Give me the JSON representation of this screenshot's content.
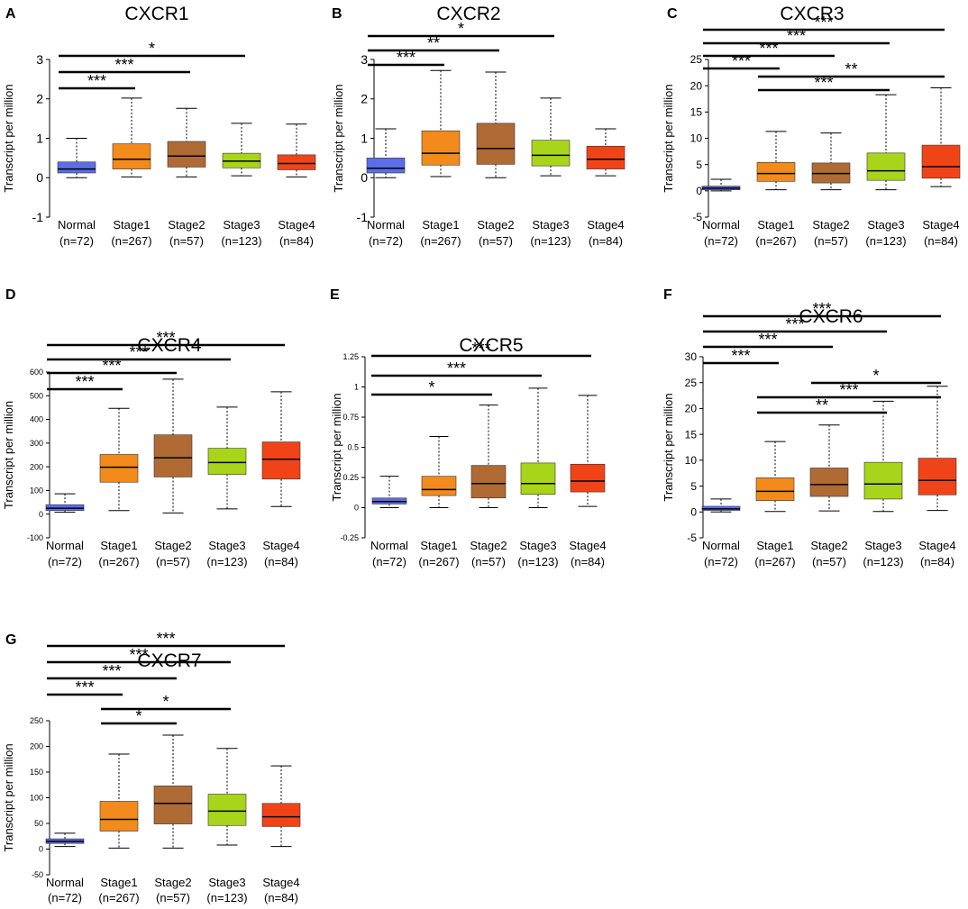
{
  "figure": {
    "y_label": "Transcript per million",
    "groups": [
      "Normal",
      "Stage1",
      "Stage2",
      "Stage3",
      "Stage4"
    ],
    "counts": [
      "(n=72)",
      "(n=267)",
      "(n=57)",
      "(n=123)",
      "(n=84)"
    ],
    "box_colors": [
      "#5b6ee8",
      "#f28a1c",
      "#b06a34",
      "#a8d41a",
      "#f04418"
    ]
  },
  "chart_data": [
    {
      "panel": "A",
      "title": "CXCR1",
      "type": "boxplot",
      "xlabel": "",
      "ylabel": "Transcript per million",
      "ylim": [
        -1,
        3
      ],
      "yticks": [
        -1,
        0,
        1,
        2,
        3
      ],
      "categories": [
        "Normal",
        "Stage1",
        "Stage2",
        "Stage3",
        "Stage4"
      ],
      "boxes": [
        {
          "min": 0.0,
          "q1": 0.12,
          "median": 0.22,
          "q3": 0.4,
          "max": 1.0
        },
        {
          "min": 0.02,
          "q1": 0.22,
          "median": 0.47,
          "q3": 0.86,
          "max": 2.02
        },
        {
          "min": 0.02,
          "q1": 0.27,
          "median": 0.55,
          "q3": 0.92,
          "max": 1.76
        },
        {
          "min": 0.05,
          "q1": 0.25,
          "median": 0.42,
          "q3": 0.62,
          "max": 1.38
        },
        {
          "min": 0.02,
          "q1": 0.2,
          "median": 0.36,
          "q3": 0.58,
          "max": 1.36
        }
      ],
      "significance": [
        {
          "from": "Normal",
          "to": "Stage1",
          "label": "***"
        },
        {
          "from": "Normal",
          "to": "Stage2",
          "label": "***"
        },
        {
          "from": "Normal",
          "to": "Stage3",
          "label": "*"
        }
      ]
    },
    {
      "panel": "B",
      "title": "CXCR2",
      "type": "boxplot",
      "xlabel": "",
      "ylabel": "Transcript per million",
      "ylim": [
        -1,
        3
      ],
      "yticks": [
        -1,
        0,
        1,
        2,
        3
      ],
      "categories": [
        "Normal",
        "Stage1",
        "Stage2",
        "Stage3",
        "Stage4"
      ],
      "boxes": [
        {
          "min": 0.0,
          "q1": 0.12,
          "median": 0.24,
          "q3": 0.5,
          "max": 1.24
        },
        {
          "min": 0.03,
          "q1": 0.32,
          "median": 0.62,
          "q3": 1.19,
          "max": 2.72
        },
        {
          "min": 0.0,
          "q1": 0.34,
          "median": 0.74,
          "q3": 1.38,
          "max": 2.68
        },
        {
          "min": 0.05,
          "q1": 0.3,
          "median": 0.57,
          "q3": 0.95,
          "max": 2.02
        },
        {
          "min": 0.05,
          "q1": 0.22,
          "median": 0.47,
          "q3": 0.8,
          "max": 1.24
        }
      ],
      "significance": [
        {
          "from": "Normal",
          "to": "Stage1",
          "label": "***"
        },
        {
          "from": "Normal",
          "to": "Stage2",
          "label": "**"
        },
        {
          "from": "Normal",
          "to": "Stage3",
          "label": "*"
        }
      ]
    },
    {
      "panel": "C",
      "title": "CXCR3",
      "type": "boxplot",
      "xlabel": "",
      "ylabel": "Transcript per million",
      "ylim": [
        -5,
        25
      ],
      "yticks": [
        -5,
        0,
        5,
        10,
        15,
        20,
        25
      ],
      "categories": [
        "Normal",
        "Stage1",
        "Stage2",
        "Stage3",
        "Stage4"
      ],
      "boxes": [
        {
          "min": 0.0,
          "q1": 0.2,
          "median": 0.5,
          "q3": 0.9,
          "max": 2.2
        },
        {
          "min": 0.2,
          "q1": 1.8,
          "median": 3.3,
          "q3": 5.4,
          "max": 11.3
        },
        {
          "min": 0.2,
          "q1": 1.5,
          "median": 3.3,
          "q3": 5.3,
          "max": 11.0
        },
        {
          "min": 0.2,
          "q1": 2.0,
          "median": 3.8,
          "q3": 7.2,
          "max": 18.3
        },
        {
          "min": 0.8,
          "q1": 2.4,
          "median": 4.6,
          "q3": 8.7,
          "max": 19.6
        }
      ],
      "significance": [
        {
          "from": "Normal",
          "to": "Stage1",
          "label": "***"
        },
        {
          "from": "Normal",
          "to": "Stage2",
          "label": "***"
        },
        {
          "from": "Normal",
          "to": "Stage3",
          "label": "***"
        },
        {
          "from": "Normal",
          "to": "Stage4",
          "label": "***"
        },
        {
          "from": "Stage1",
          "to": "Stage3",
          "label": "***"
        },
        {
          "from": "Stage1",
          "to": "Stage4",
          "label": "**"
        }
      ]
    },
    {
      "panel": "D",
      "title": "CXCR4",
      "type": "boxplot",
      "xlabel": "",
      "ylabel": "Transcript per million",
      "ylim": [
        -100,
        600
      ],
      "yticks": [
        -100,
        0,
        100,
        200,
        300,
        400,
        500,
        600
      ],
      "categories": [
        "Normal",
        "Stage1",
        "Stage2",
        "Stage3",
        "Stage4"
      ],
      "boxes": [
        {
          "min": 8,
          "q1": 15,
          "median": 25,
          "q3": 40,
          "max": 86
        },
        {
          "min": 15,
          "q1": 135,
          "median": 198,
          "q3": 252,
          "max": 447
        },
        {
          "min": 5,
          "q1": 157,
          "median": 238,
          "q3": 335,
          "max": 570
        },
        {
          "min": 22,
          "q1": 168,
          "median": 218,
          "q3": 278,
          "max": 452
        },
        {
          "min": 32,
          "q1": 148,
          "median": 232,
          "q3": 305,
          "max": 517
        }
      ],
      "significance": [
        {
          "from": "Normal",
          "to": "Stage1",
          "label": "***"
        },
        {
          "from": "Normal",
          "to": "Stage2",
          "label": "***"
        },
        {
          "from": "Normal",
          "to": "Stage3",
          "label": "***"
        },
        {
          "from": "Normal",
          "to": "Stage4",
          "label": "***"
        }
      ]
    },
    {
      "panel": "E",
      "title": "CXCR5",
      "type": "boxplot",
      "xlabel": "",
      "ylabel": "Transcript per million",
      "ylim": [
        -0.25,
        1.25
      ],
      "yticks": [
        -0.25,
        0,
        0.25,
        0.5,
        0.75,
        1,
        1.25
      ],
      "ytick_labels": [
        "-0.25",
        "0",
        "0.25",
        "0.5",
        "0.75",
        "1",
        "1.25"
      ],
      "categories": [
        "Normal",
        "Stage1",
        "Stage2",
        "Stage3",
        "Stage4"
      ],
      "boxes": [
        {
          "min": 0.0,
          "q1": 0.03,
          "median": 0.05,
          "q3": 0.08,
          "max": 0.26
        },
        {
          "min": 0.0,
          "q1": 0.1,
          "median": 0.15,
          "q3": 0.26,
          "max": 0.59
        },
        {
          "min": 0.0,
          "q1": 0.08,
          "median": 0.2,
          "q3": 0.35,
          "max": 0.85
        },
        {
          "min": 0.0,
          "q1": 0.11,
          "median": 0.2,
          "q3": 0.37,
          "max": 0.99
        },
        {
          "min": 0.01,
          "q1": 0.13,
          "median": 0.22,
          "q3": 0.36,
          "max": 0.93
        }
      ],
      "significance": [
        {
          "from": "Normal",
          "to": "Stage2",
          "label": "*"
        },
        {
          "from": "Normal",
          "to": "Stage3",
          "label": "***"
        },
        {
          "from": "Normal",
          "to": "Stage4",
          "label": "***"
        }
      ]
    },
    {
      "panel": "F",
      "title": "CXCR6",
      "type": "boxplot",
      "xlabel": "",
      "ylabel": "Transcript per million",
      "ylim": [
        -5,
        30
      ],
      "yticks": [
        -5,
        0,
        5,
        10,
        15,
        20,
        25,
        30
      ],
      "categories": [
        "Normal",
        "Stage1",
        "Stage2",
        "Stage3",
        "Stage4"
      ],
      "boxes": [
        {
          "min": 0.0,
          "q1": 0.3,
          "median": 0.6,
          "q3": 1.1,
          "max": 2.5
        },
        {
          "min": 0.1,
          "q1": 2.2,
          "median": 4.0,
          "q3": 6.6,
          "max": 13.6
        },
        {
          "min": 0.2,
          "q1": 3.0,
          "median": 5.3,
          "q3": 8.5,
          "max": 16.8
        },
        {
          "min": 0.1,
          "q1": 2.5,
          "median": 5.4,
          "q3": 9.6,
          "max": 21.4
        },
        {
          "min": 0.3,
          "q1": 3.3,
          "median": 6.1,
          "q3": 10.4,
          "max": 24.3
        }
      ],
      "significance": [
        {
          "from": "Normal",
          "to": "Stage1",
          "label": "***"
        },
        {
          "from": "Normal",
          "to": "Stage2",
          "label": "***"
        },
        {
          "from": "Normal",
          "to": "Stage3",
          "label": "***"
        },
        {
          "from": "Normal",
          "to": "Stage4",
          "label": "***"
        },
        {
          "from": "Stage1",
          "to": "Stage3",
          "label": "**"
        },
        {
          "from": "Stage1",
          "to": "Stage4",
          "label": "***"
        },
        {
          "from": "Stage2",
          "to": "Stage4",
          "label": "*"
        }
      ]
    },
    {
      "panel": "G",
      "title": "CXCR7",
      "type": "boxplot",
      "xlabel": "",
      "ylabel": "Transcript per million",
      "ylim": [
        -50,
        250
      ],
      "yticks": [
        -50,
        0,
        50,
        100,
        150,
        200,
        250
      ],
      "categories": [
        "Normal",
        "Stage1",
        "Stage2",
        "Stage3",
        "Stage4"
      ],
      "boxes": [
        {
          "min": 5,
          "q1": 11,
          "median": 15,
          "q3": 20,
          "max": 31
        },
        {
          "min": 2,
          "q1": 35,
          "median": 58,
          "q3": 93,
          "max": 185
        },
        {
          "min": 2,
          "q1": 49,
          "median": 89,
          "q3": 123,
          "max": 222
        },
        {
          "min": 8,
          "q1": 46,
          "median": 74,
          "q3": 107,
          "max": 196
        },
        {
          "min": 5,
          "q1": 44,
          "median": 63,
          "q3": 89,
          "max": 162
        }
      ],
      "significance": [
        {
          "from": "Normal",
          "to": "Stage1",
          "label": "***"
        },
        {
          "from": "Normal",
          "to": "Stage2",
          "label": "***"
        },
        {
          "from": "Normal",
          "to": "Stage3",
          "label": "***"
        },
        {
          "from": "Normal",
          "to": "Stage4",
          "label": "***"
        },
        {
          "from": "Stage1",
          "to": "Stage2",
          "label": "*"
        },
        {
          "from": "Stage1",
          "to": "Stage3",
          "label": "*"
        }
      ]
    }
  ]
}
